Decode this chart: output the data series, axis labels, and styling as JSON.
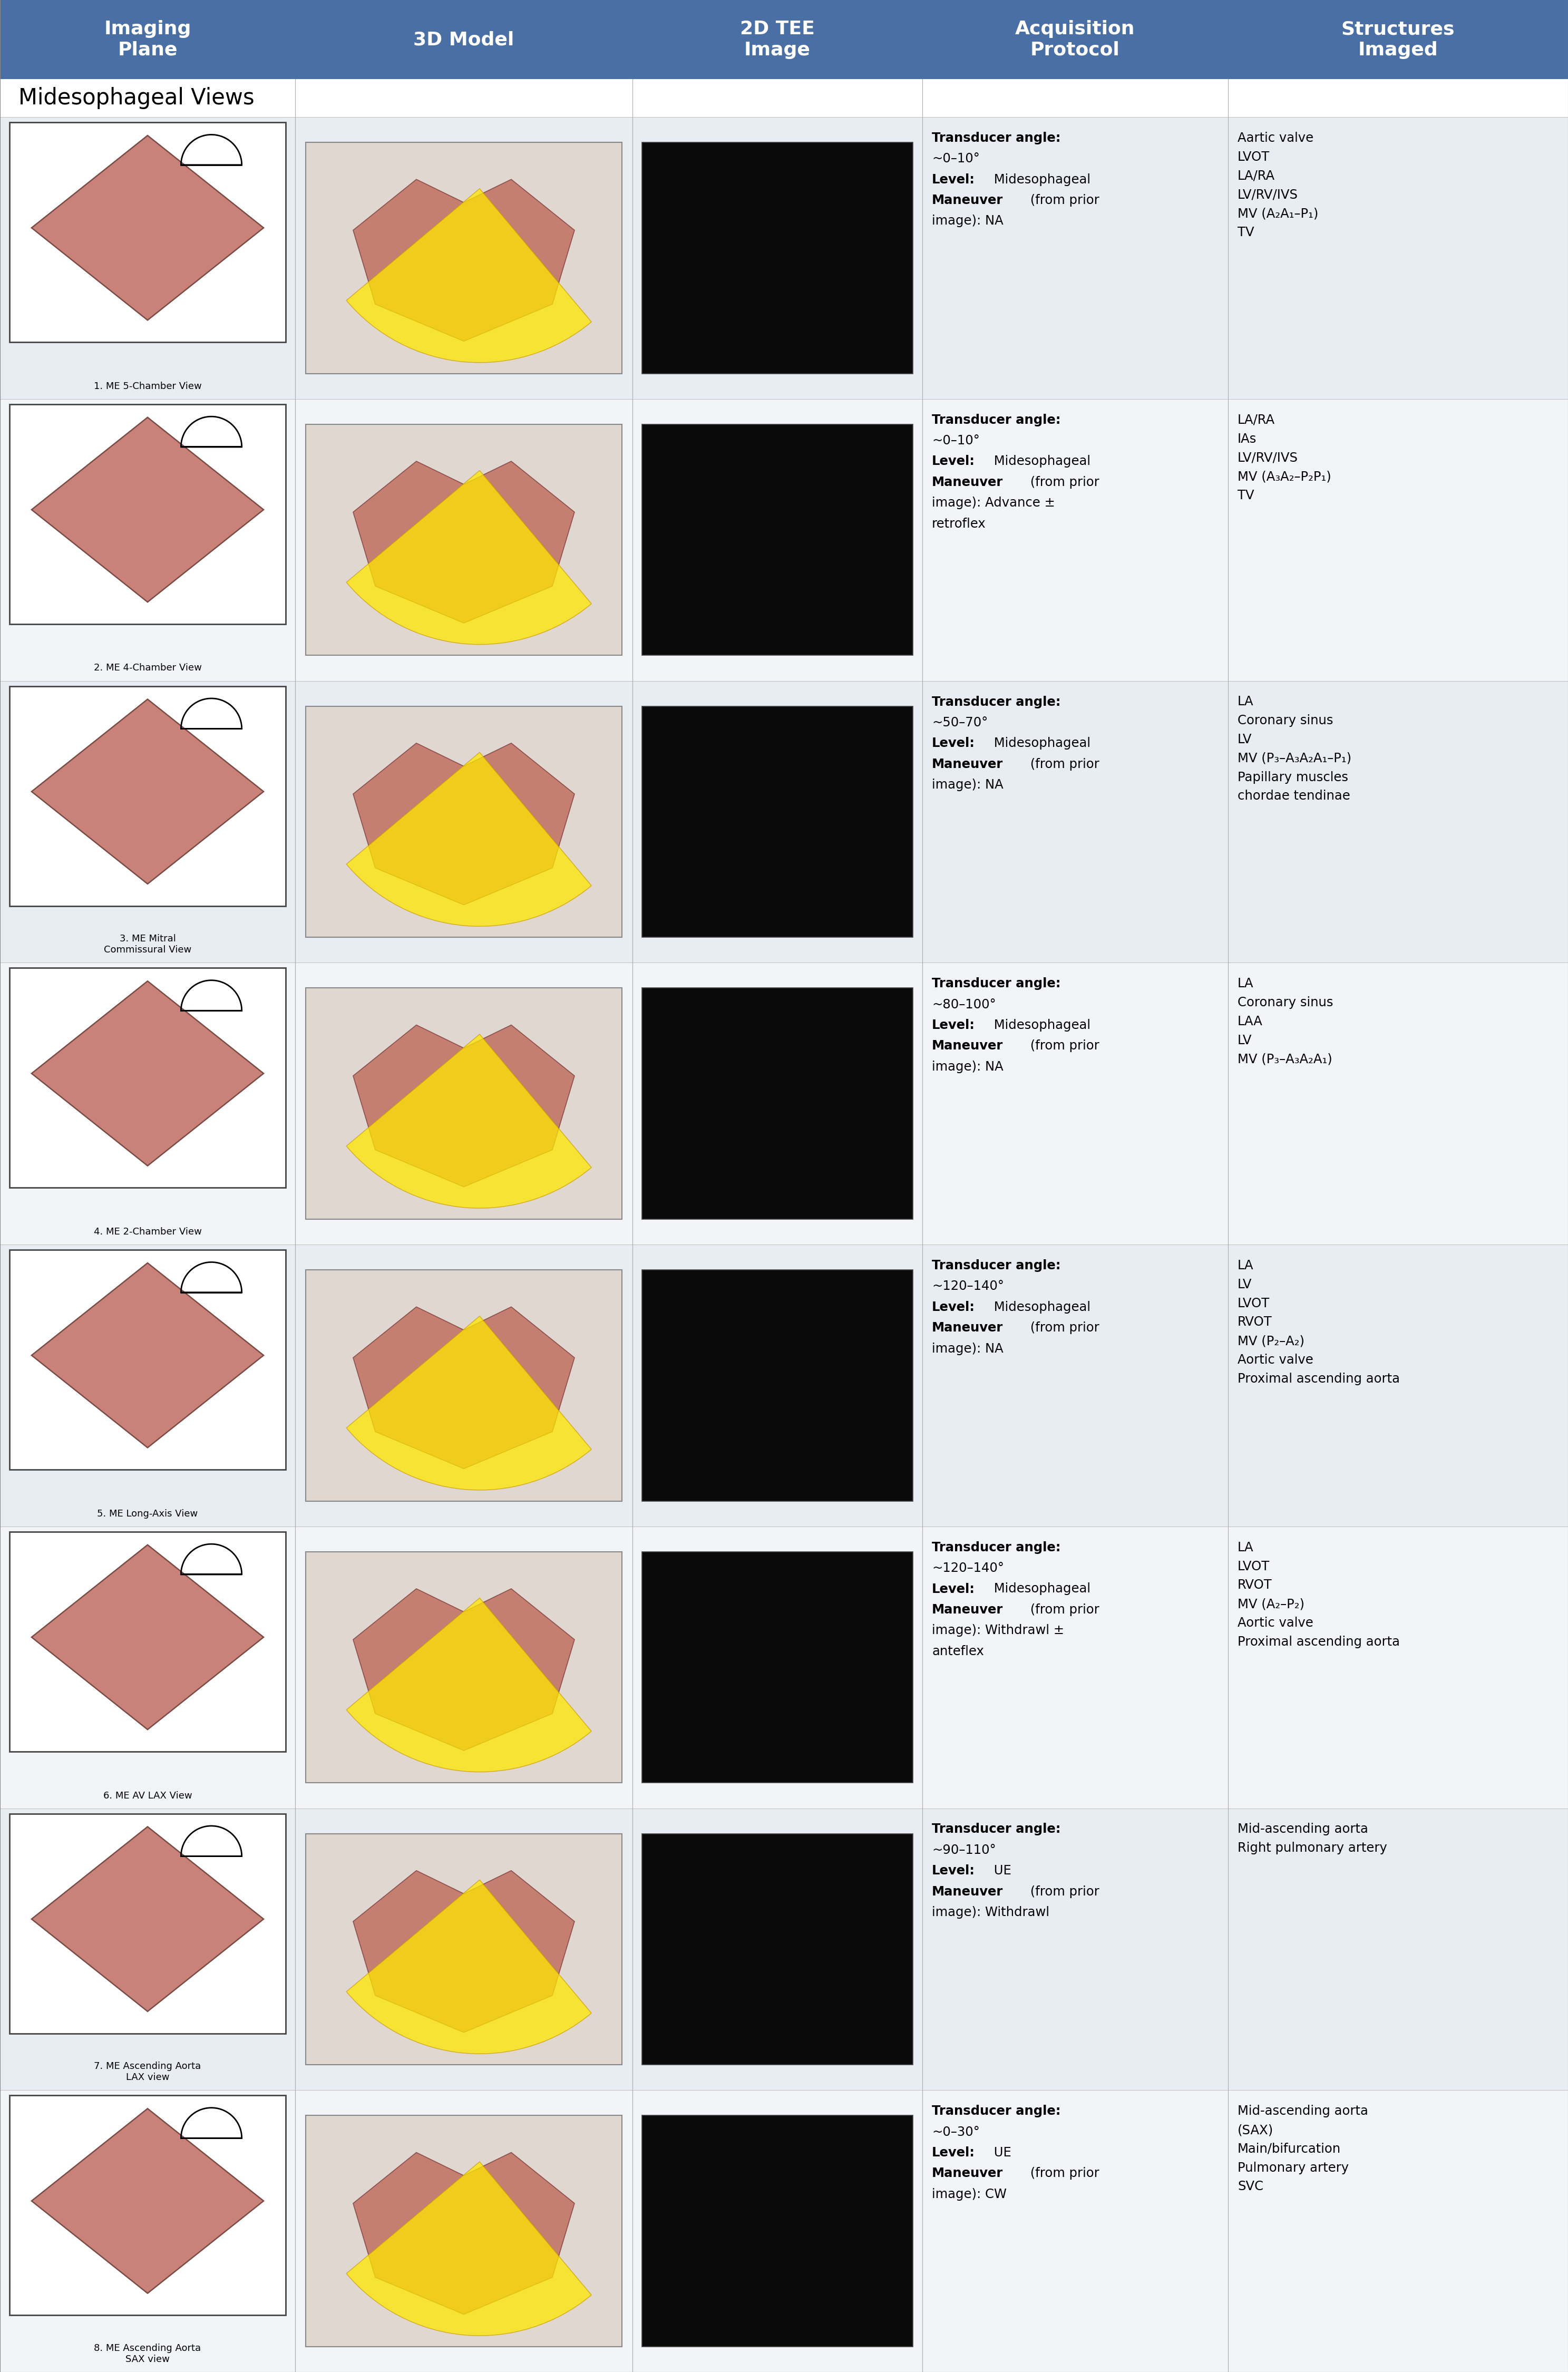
{
  "header_bg": "#4A6FA5",
  "header_text_color": "#FFFFFF",
  "row_bg_odd": "#E8EDF3",
  "row_bg_even": "#F2F4F8",
  "section_bg": "#FFFFFF",
  "col_headers": [
    "Imaging\nPlane",
    "3D Model",
    "2D TEE\nImage",
    "Acquisition\nProtocol",
    "Structures\nImaged"
  ],
  "section_label": "Midesophageal Views",
  "rows": [
    {
      "label": "1. ME 5-Chamber View",
      "protocol_bold": [
        "Transducer angle:",
        "Level:",
        "Maneuver"
      ],
      "protocol": "Transducer angle:\n~0–10°\nLevel: Midesophageal\nManeuver (from prior\nimage): NA",
      "structures": "Aartic valve\nLVOT\nLA/RA\nLV/RV/IVS\nMV (A₂A₁–P₁)\nTV"
    },
    {
      "label": "2. ME 4-Chamber View",
      "protocol_bold": [
        "Transducer angle:",
        "Level:",
        "Maneuver"
      ],
      "protocol": "Transducer angle:\n~0–10°\nLevel: Midesophageal\nManeuver (from prior\nimage): Advance ±\nretroflex",
      "structures": "LA/RA\nIAs\nLV/RV/IVS\nMV (A₃A₂–P₂P₁)\nTV"
    },
    {
      "label": "3. ME Mitral\nCommissural View",
      "protocol_bold": [
        "Transducer angle:",
        "Level:",
        "Maneuver"
      ],
      "protocol": "Transducer angle:\n~50–70°\nLevel: Midesophageal\nManeuver (from prior\nimage): NA",
      "structures": "LA\nCoronary sinus\nLV\nMV (P₃–A₃A₂A₁–P₁)\nPapillary muscles\nchordae tendinae"
    },
    {
      "label": "4. ME 2-Chamber View",
      "protocol_bold": [
        "Transducer angle:",
        "Level:",
        "Maneuver"
      ],
      "protocol": "Transducer angle:\n~80–100°\nLevel: Midesophageal\nManeuver (from prior\nimage): NA",
      "structures": "LA\nCoronary sinus\nLAA\nLV\nMV (P₃–A₃A₂A₁)"
    },
    {
      "label": "5. ME Long-Axis View",
      "protocol_bold": [
        "Transducer angle:",
        "Level:",
        "Maneuver"
      ],
      "protocol": "Transducer angle:\n~120–140°\nLevel: Midesophageal\nManeuver (from prior\nimage): NA",
      "structures": "LA\nLV\nLVOT\nRVOT\nMV (P₂–A₂)\nAortic valve\nProximal ascending aorta"
    },
    {
      "label": "6. ME AV LAX View",
      "protocol_bold": [
        "Transducer angle:",
        "Level:",
        "Maneuver"
      ],
      "protocol": "Transducer angle:\n~120–140°\nLevel: Midesophageal\nManeuver (from prior\nimage): Withdrawl ±\nanteflex",
      "structures": "LA\nLVOT\nRVOT\nMV (A₂–P₂)\nAortic valve\nProximal ascending aorta"
    },
    {
      "label": "7. ME Ascending Aorta\nLAX view",
      "protocol_bold": [
        "Transducer angle:",
        "Level:",
        "Maneuver"
      ],
      "protocol": "Transducer angle:\n~90–110°\nLevel: UE\nManeuver (from prior\nimage): Withdrawl",
      "structures": "Mid-ascending aorta\nRight pulmonary artery"
    },
    {
      "label": "8. ME Ascending Aorta\nSAX view",
      "protocol_bold": [
        "Transducer angle:",
        "Level:",
        "Maneuver"
      ],
      "protocol": "Transducer angle:\n~0–30°\nLevel: UE\nManeuver (from prior\nimage): CW",
      "structures": "Mid-ascending aorta\n(SAX)\nMain/bifurcation\nPulmonary artery\nSVC"
    }
  ]
}
